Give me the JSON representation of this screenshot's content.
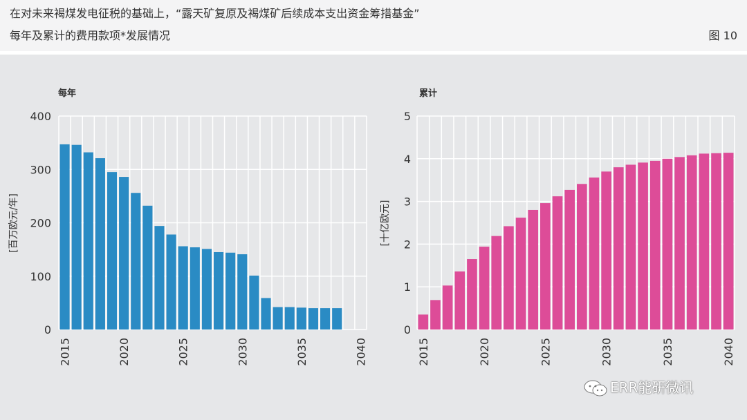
{
  "header": {
    "title_line1": "在对未来褐煤发电征税的基础上，“露天矿复原及褐煤矿后续成本支出资金筹措基金”",
    "title_line2": "每年及累计的费用款项*发展情况",
    "figure_label": "图 10"
  },
  "watermark": {
    "text": "ERR能研微讯",
    "icon": "wechat-icon"
  },
  "colors": {
    "annual": "#2a8bc4",
    "cumulative": "#dd4c98",
    "background": "#e6e7e9",
    "grid": "#ffffff"
  },
  "chart_data": [
    {
      "type": "bar",
      "title": "每年",
      "ylabel": "[百万欧元/年]",
      "ylim": [
        0,
        400
      ],
      "yticks": [
        0,
        100,
        200,
        300,
        400
      ],
      "xlim": [
        2015,
        2040
      ],
      "xticks": [
        2015,
        2020,
        2025,
        2030,
        2035,
        2040
      ],
      "grid": true,
      "x": [
        2015,
        2016,
        2017,
        2018,
        2019,
        2020,
        2021,
        2022,
        2023,
        2024,
        2025,
        2026,
        2027,
        2028,
        2029,
        2030,
        2031,
        2032,
        2033,
        2034,
        2035,
        2036,
        2037,
        2038
      ],
      "values": [
        347,
        346,
        332,
        321,
        295,
        286,
        256,
        232,
        194,
        178,
        156,
        154,
        151,
        145,
        144,
        141,
        101,
        59,
        42,
        42,
        41,
        40,
        40,
        40
      ]
    },
    {
      "type": "bar",
      "title": "累计",
      "ylabel": "[十亿欧元]",
      "ylim": [
        0,
        5
      ],
      "yticks": [
        0,
        1,
        2,
        3,
        4,
        5
      ],
      "xlim": [
        2015,
        2040
      ],
      "xticks": [
        2015,
        2020,
        2025,
        2030,
        2035,
        2040
      ],
      "grid": true,
      "x": [
        2015,
        2016,
        2017,
        2018,
        2019,
        2020,
        2021,
        2022,
        2023,
        2024,
        2025,
        2026,
        2027,
        2028,
        2029,
        2030,
        2031,
        2032,
        2033,
        2034,
        2035,
        2036,
        2037,
        2038,
        2039,
        2040
      ],
      "values": [
        0.35,
        0.69,
        1.03,
        1.36,
        1.65,
        1.94,
        2.19,
        2.42,
        2.62,
        2.8,
        2.96,
        3.12,
        3.27,
        3.41,
        3.56,
        3.7,
        3.8,
        3.86,
        3.91,
        3.95,
        4.0,
        4.04,
        4.08,
        4.12,
        4.13,
        4.14
      ]
    }
  ]
}
